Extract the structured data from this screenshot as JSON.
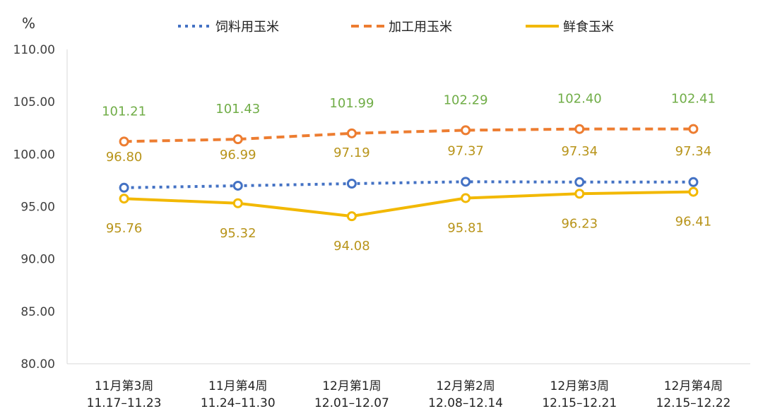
{
  "chart_data": {
    "type": "line",
    "unit": "%",
    "ylim": [
      80,
      110
    ],
    "y_ticks": [
      "110.00",
      "105.00",
      "100.00",
      "95.00",
      "90.00",
      "85.00",
      "80.00"
    ],
    "categories": [
      [
        "11月第3周",
        "11.17–11.23"
      ],
      [
        "11月第4周",
        "11.24–11.30"
      ],
      [
        "12月第1周",
        "12.01–12.07"
      ],
      [
        "12月第2周",
        "12.08–12.14"
      ],
      [
        "12月第3周",
        "12.15–12.21"
      ],
      [
        "12月第4周",
        "12.15–12.22"
      ]
    ],
    "legend_position": "top",
    "grid": false,
    "series": [
      {
        "name": "饲料用玉米",
        "style": "dotted",
        "color": "#4472C4",
        "label_color": "#B8941A",
        "values": [
          96.8,
          96.99,
          97.19,
          97.37,
          97.34,
          97.34
        ],
        "labels": [
          "96.80",
          "96.99",
          "97.19",
          "97.37",
          "97.34",
          "97.34"
        ]
      },
      {
        "name": "加工用玉米",
        "style": "dashed",
        "color": "#ED7D31",
        "label_color": "#70AD47",
        "values": [
          101.21,
          101.43,
          101.99,
          102.29,
          102.4,
          102.41
        ],
        "labels": [
          "101.21",
          "101.43",
          "101.99",
          "102.29",
          "102.40",
          "102.41"
        ]
      },
      {
        "name": "鲜食玉米",
        "style": "solid",
        "color": "#F2B800",
        "label_color": "#B8941A",
        "values": [
          95.76,
          95.32,
          94.08,
          95.81,
          96.23,
          96.41
        ],
        "labels": [
          "95.76",
          "95.32",
          "94.08",
          "95.81",
          "96.23",
          "96.41"
        ]
      }
    ]
  }
}
